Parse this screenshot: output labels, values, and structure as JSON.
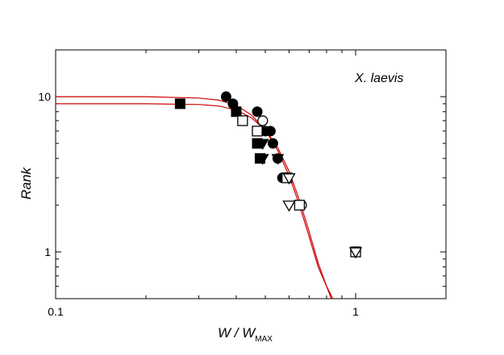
{
  "chart_data": {
    "type": "scatter",
    "title": "",
    "xlabel": "W / W",
    "xlabel_subscript": "MAX",
    "ylabel": "Rank",
    "xscale": "log",
    "yscale": "log",
    "xlim": [
      0.1,
      2.0
    ],
    "ylim": [
      0.5,
      20
    ],
    "grid": false,
    "x_ticks": [
      0.1,
      1
    ],
    "x_tick_labels": [
      "0.1",
      "1"
    ],
    "y_ticks": [
      1,
      10
    ],
    "y_tick_labels": [
      "1",
      "10"
    ],
    "annotation": "X. laevis",
    "series": [
      {
        "marker": "filled-circle",
        "points": [
          [
            0.37,
            10
          ],
          [
            0.39,
            9
          ],
          [
            0.47,
            8
          ],
          [
            0.5,
            6
          ],
          [
            0.52,
            6
          ],
          [
            0.53,
            5
          ],
          [
            0.55,
            4
          ],
          [
            0.57,
            3
          ]
        ]
      },
      {
        "marker": "open-circle",
        "points": [
          [
            0.49,
            7
          ],
          [
            0.66,
            2
          ],
          [
            1.0,
            1
          ]
        ]
      },
      {
        "marker": "filled-square",
        "points": [
          [
            0.26,
            9
          ],
          [
            0.4,
            8
          ],
          [
            0.47,
            5
          ],
          [
            0.48,
            4
          ]
        ]
      },
      {
        "marker": "open-square",
        "points": [
          [
            0.42,
            7
          ],
          [
            0.47,
            6
          ],
          [
            0.59,
            3
          ],
          [
            0.65,
            2
          ],
          [
            1.0,
            1
          ]
        ]
      },
      {
        "marker": "filled-triangle-down",
        "points": [
          [
            0.49,
            5
          ],
          [
            0.49,
            4
          ],
          [
            0.55,
            4
          ]
        ]
      },
      {
        "marker": "open-triangle-down",
        "points": [
          [
            0.6,
            3
          ],
          [
            0.6,
            2
          ],
          [
            1.0,
            1
          ]
        ]
      }
    ],
    "fit_curves": [
      {
        "color": "#cc0000",
        "x": [
          0.1,
          0.2,
          0.3,
          0.35,
          0.4,
          0.45,
          0.5,
          0.55,
          0.6,
          0.65,
          0.7,
          0.75,
          0.8,
          0.83
        ],
        "y": [
          10,
          10,
          9.8,
          9.5,
          8.8,
          7.6,
          6.1,
          4.5,
          3.1,
          2.0,
          1.25,
          0.8,
          0.6,
          0.5
        ]
      },
      {
        "color": "#cc0000",
        "x": [
          0.1,
          0.2,
          0.3,
          0.35,
          0.4,
          0.45,
          0.5,
          0.55,
          0.6,
          0.65,
          0.7,
          0.75,
          0.8,
          0.84
        ],
        "y": [
          9,
          9,
          8.9,
          8.7,
          8.2,
          7.3,
          6.1,
          4.7,
          3.3,
          2.15,
          1.35,
          0.85,
          0.6,
          0.5
        ]
      }
    ]
  }
}
